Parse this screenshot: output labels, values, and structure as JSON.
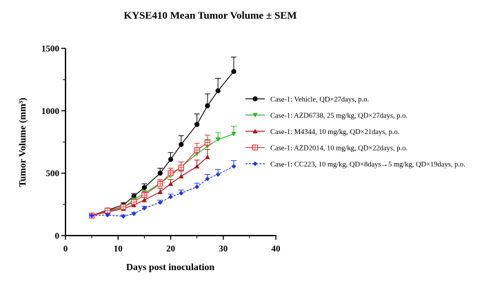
{
  "chart_data": {
    "type": "line",
    "title": "KYSE410 Mean Tumor Volume ± SEM",
    "xlabel": "Days post inoculation",
    "ylabel": "Tumor Volume (mm³)",
    "xlim": [
      0,
      40
    ],
    "ylim": [
      0,
      1500
    ],
    "xticks": [
      0,
      10,
      20,
      30,
      40
    ],
    "yticks": [
      0,
      500,
      1000,
      1500
    ],
    "grid": false,
    "legend_position": "right",
    "series": [
      {
        "name": "Case-1: Vehicle, QD×27days, p.o.",
        "color": "#000000",
        "marker": "circle",
        "x": [
          5,
          8,
          11,
          13,
          15,
          18,
          20,
          22,
          25,
          27,
          29,
          32
        ],
        "y": [
          160,
          205,
          245,
          315,
          385,
          500,
          610,
          730,
          890,
          1040,
          1160,
          1315
        ],
        "err": [
          10,
          15,
          18,
          22,
          30,
          40,
          55,
          70,
          85,
          95,
          100,
          115
        ]
      },
      {
        "name": "Case-1: AZD6738, 25 mg/kg, QD×27days, p.o.",
        "color": "#22bb22",
        "marker": "triangle-down",
        "x": [
          5,
          8,
          11,
          13,
          15,
          18,
          20,
          22,
          25,
          27,
          29,
          32
        ],
        "y": [
          160,
          195,
          225,
          285,
          340,
          420,
          480,
          550,
          655,
          715,
          770,
          815
        ],
        "err": [
          10,
          12,
          15,
          18,
          22,
          28,
          35,
          40,
          50,
          55,
          55,
          60
        ]
      },
      {
        "name": "Case-1: M4344, 10 mg/kg, QD×21days, p.o.",
        "color": "#aa1111",
        "marker": "triangle-up",
        "x": [
          5,
          8,
          11,
          13,
          15,
          18,
          20,
          22,
          25,
          27
        ],
        "y": [
          160,
          190,
          215,
          245,
          285,
          350,
          415,
          475,
          555,
          630
        ],
        "err": [
          10,
          12,
          14,
          18,
          22,
          30,
          35,
          42,
          50,
          60
        ]
      },
      {
        "name": "Case-1: AZD2014, 10 mg/kg, QD×22days, p.o.",
        "color": "#ee3333",
        "marker": "square-open",
        "x": [
          5,
          8,
          11,
          13,
          15,
          18,
          20,
          22,
          25,
          27
        ],
        "y": [
          160,
          200,
          230,
          270,
          325,
          415,
          500,
          545,
          685,
          745
        ],
        "err": [
          10,
          12,
          15,
          18,
          25,
          32,
          40,
          45,
          55,
          60
        ]
      },
      {
        "name": "Case-1: CC223, 10 mg/kg, QD×8days→5 mg/kg, QD×19days, p.o.",
        "color": "#2233ee",
        "marker": "diamond",
        "x": [
          5,
          8,
          11,
          13,
          15,
          18,
          20,
          22,
          25,
          27,
          29,
          32
        ],
        "y": [
          160,
          165,
          155,
          175,
          220,
          265,
          310,
          340,
          390,
          455,
          490,
          555
        ],
        "err": [
          8,
          10,
          10,
          12,
          15,
          18,
          22,
          25,
          30,
          35,
          40,
          45
        ]
      }
    ]
  }
}
